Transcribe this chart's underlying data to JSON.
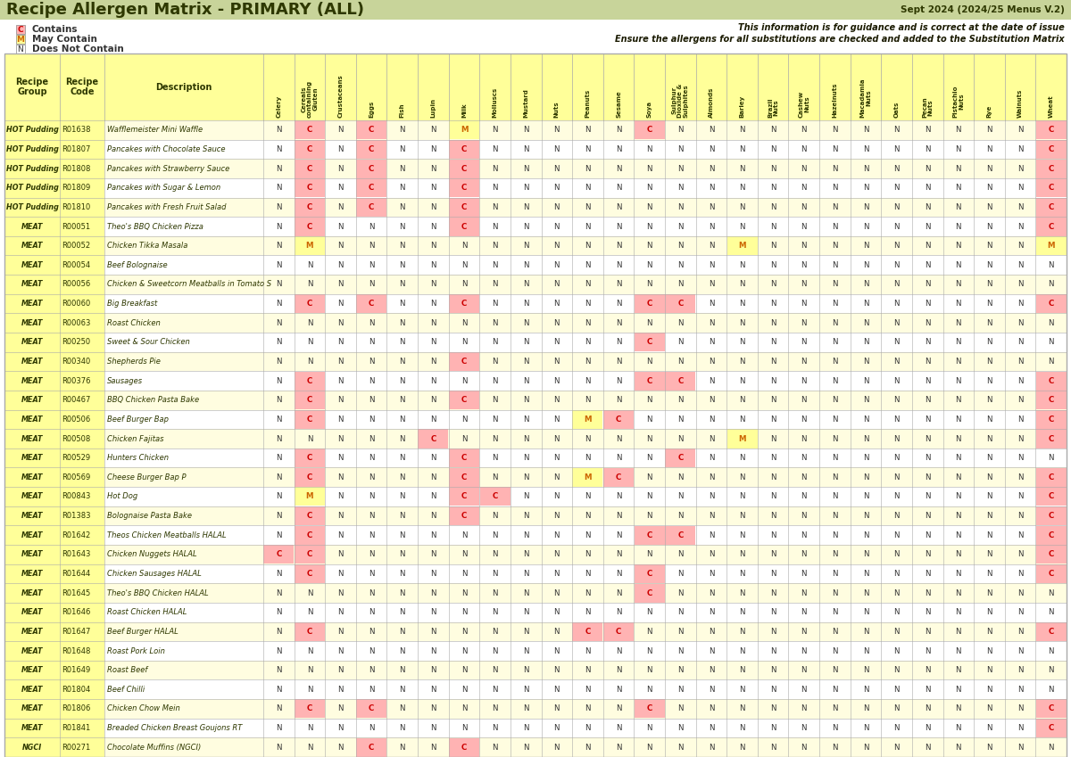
{
  "title": "Recipe Allergen Matrix - PRIMARY (ALL)",
  "version": "Sept 2024 (2024/25 Menus V.2)",
  "guidance": "This information is for guidance and is correct at the date of issue",
  "guidance2": "Ensure the allergens for all substitutions are checked and added to the Substitution Matrix",
  "header_green": "#C8D49A",
  "table_yellow": "#FFFF99",
  "cell_C": "#FFB3B3",
  "cell_M": "#FFFF99",
  "cell_N": "#FFFFFF",
  "row_alt": "#FFFDE0",
  "grid_color": "#AAAAAA",
  "allergen_labels": [
    "Celery",
    "Cereals\ncontaining\nGluten",
    "Crustaceans",
    "Eggs",
    "Fish",
    "Lupin",
    "Milk",
    "Molluscs",
    "Mustard",
    "Nuts",
    "Peanuts",
    "Sesame",
    "Soya",
    "Sulphur\nDioxide &\nSulphites",
    "Almonds",
    "Barley",
    "Brazil\nNuts",
    "Cashew\nNuts",
    "Hazelnuts",
    "Macadamia\nNuts",
    "Oats",
    "Pecan\nNuts",
    "Pistachio\nNuts",
    "Rye",
    "Walnuts",
    "Wheat"
  ],
  "rows": [
    {
      "group": "HOT Pudding",
      "code": "R01638",
      "desc": "Wafflemeister Mini Waffle",
      "vals": [
        "N",
        "C",
        "N",
        "C",
        "N",
        "N",
        "M",
        "N",
        "N",
        "N",
        "N",
        "N",
        "C",
        "N",
        "N",
        "N",
        "N",
        "N",
        "N",
        "N",
        "N",
        "N",
        "N",
        "N",
        "N",
        "C"
      ]
    },
    {
      "group": "HOT Pudding",
      "code": "R01807",
      "desc": "Pancakes with Chocolate Sauce",
      "vals": [
        "N",
        "C",
        "N",
        "C",
        "N",
        "N",
        "C",
        "N",
        "N",
        "N",
        "N",
        "N",
        "N",
        "N",
        "N",
        "N",
        "N",
        "N",
        "N",
        "N",
        "N",
        "N",
        "N",
        "N",
        "N",
        "C"
      ]
    },
    {
      "group": "HOT Pudding",
      "code": "R01808",
      "desc": "Pancakes with Strawberry Sauce",
      "vals": [
        "N",
        "C",
        "N",
        "C",
        "N",
        "N",
        "C",
        "N",
        "N",
        "N",
        "N",
        "N",
        "N",
        "N",
        "N",
        "N",
        "N",
        "N",
        "N",
        "N",
        "N",
        "N",
        "N",
        "N",
        "N",
        "C"
      ]
    },
    {
      "group": "HOT Pudding",
      "code": "R01809",
      "desc": "Pancakes with Sugar & Lemon",
      "vals": [
        "N",
        "C",
        "N",
        "C",
        "N",
        "N",
        "C",
        "N",
        "N",
        "N",
        "N",
        "N",
        "N",
        "N",
        "N",
        "N",
        "N",
        "N",
        "N",
        "N",
        "N",
        "N",
        "N",
        "N",
        "N",
        "C"
      ]
    },
    {
      "group": "HOT Pudding",
      "code": "R01810",
      "desc": "Pancakes with Fresh Fruit Salad",
      "vals": [
        "N",
        "C",
        "N",
        "C",
        "N",
        "N",
        "C",
        "N",
        "N",
        "N",
        "N",
        "N",
        "N",
        "N",
        "N",
        "N",
        "N",
        "N",
        "N",
        "N",
        "N",
        "N",
        "N",
        "N",
        "N",
        "C"
      ]
    },
    {
      "group": "MEAT",
      "code": "R00051",
      "desc": "Theo's BBQ Chicken Pizza",
      "vals": [
        "N",
        "C",
        "N",
        "N",
        "N",
        "N",
        "C",
        "N",
        "N",
        "N",
        "N",
        "N",
        "N",
        "N",
        "N",
        "N",
        "N",
        "N",
        "N",
        "N",
        "N",
        "N",
        "N",
        "N",
        "N",
        "C"
      ]
    },
    {
      "group": "MEAT",
      "code": "R00052",
      "desc": "Chicken Tikka Masala",
      "vals": [
        "N",
        "M",
        "N",
        "N",
        "N",
        "N",
        "N",
        "N",
        "N",
        "N",
        "N",
        "N",
        "N",
        "N",
        "N",
        "M",
        "N",
        "N",
        "N",
        "N",
        "N",
        "N",
        "N",
        "N",
        "N",
        "M"
      ]
    },
    {
      "group": "MEAT",
      "code": "R00054",
      "desc": "Beef Bolognaise",
      "vals": [
        "N",
        "N",
        "N",
        "N",
        "N",
        "N",
        "N",
        "N",
        "N",
        "N",
        "N",
        "N",
        "N",
        "N",
        "N",
        "N",
        "N",
        "N",
        "N",
        "N",
        "N",
        "N",
        "N",
        "N",
        "N",
        "N"
      ]
    },
    {
      "group": "MEAT",
      "code": "R00056",
      "desc": "Chicken & Sweetcorn Meatballs in Tomato S",
      "vals": [
        "N",
        "N",
        "N",
        "N",
        "N",
        "N",
        "N",
        "N",
        "N",
        "N",
        "N",
        "N",
        "N",
        "N",
        "N",
        "N",
        "N",
        "N",
        "N",
        "N",
        "N",
        "N",
        "N",
        "N",
        "N",
        "N"
      ]
    },
    {
      "group": "MEAT",
      "code": "R00060",
      "desc": "Big Breakfast",
      "vals": [
        "N",
        "C",
        "N",
        "C",
        "N",
        "N",
        "C",
        "N",
        "N",
        "N",
        "N",
        "N",
        "C",
        "C",
        "N",
        "N",
        "N",
        "N",
        "N",
        "N",
        "N",
        "N",
        "N",
        "N",
        "N",
        "C"
      ]
    },
    {
      "group": "MEAT",
      "code": "R00063",
      "desc": "Roast Chicken",
      "vals": [
        "N",
        "N",
        "N",
        "N",
        "N",
        "N",
        "N",
        "N",
        "N",
        "N",
        "N",
        "N",
        "N",
        "N",
        "N",
        "N",
        "N",
        "N",
        "N",
        "N",
        "N",
        "N",
        "N",
        "N",
        "N",
        "N"
      ]
    },
    {
      "group": "MEAT",
      "code": "R00250",
      "desc": "Sweet & Sour Chicken",
      "vals": [
        "N",
        "N",
        "N",
        "N",
        "N",
        "N",
        "N",
        "N",
        "N",
        "N",
        "N",
        "N",
        "C",
        "N",
        "N",
        "N",
        "N",
        "N",
        "N",
        "N",
        "N",
        "N",
        "N",
        "N",
        "N",
        "N"
      ]
    },
    {
      "group": "MEAT",
      "code": "R00340",
      "desc": "Shepherds Pie",
      "vals": [
        "N",
        "N",
        "N",
        "N",
        "N",
        "N",
        "C",
        "N",
        "N",
        "N",
        "N",
        "N",
        "N",
        "N",
        "N",
        "N",
        "N",
        "N",
        "N",
        "N",
        "N",
        "N",
        "N",
        "N",
        "N",
        "N"
      ]
    },
    {
      "group": "MEAT",
      "code": "R00376",
      "desc": "Sausages",
      "vals": [
        "N",
        "C",
        "N",
        "N",
        "N",
        "N",
        "N",
        "N",
        "N",
        "N",
        "N",
        "N",
        "C",
        "C",
        "N",
        "N",
        "N",
        "N",
        "N",
        "N",
        "N",
        "N",
        "N",
        "N",
        "N",
        "C"
      ]
    },
    {
      "group": "MEAT",
      "code": "R00467",
      "desc": "BBQ Chicken Pasta Bake",
      "vals": [
        "N",
        "C",
        "N",
        "N",
        "N",
        "N",
        "C",
        "N",
        "N",
        "N",
        "N",
        "N",
        "N",
        "N",
        "N",
        "N",
        "N",
        "N",
        "N",
        "N",
        "N",
        "N",
        "N",
        "N",
        "N",
        "C"
      ]
    },
    {
      "group": "MEAT",
      "code": "R00506",
      "desc": "Beef Burger Bap",
      "vals": [
        "N",
        "C",
        "N",
        "N",
        "N",
        "N",
        "N",
        "N",
        "N",
        "N",
        "M",
        "C",
        "N",
        "N",
        "N",
        "N",
        "N",
        "N",
        "N",
        "N",
        "N",
        "N",
        "N",
        "N",
        "N",
        "C"
      ]
    },
    {
      "group": "MEAT",
      "code": "R00508",
      "desc": "Chicken Fajitas",
      "vals": [
        "N",
        "N",
        "N",
        "N",
        "N",
        "C",
        "N",
        "N",
        "N",
        "N",
        "N",
        "N",
        "N",
        "N",
        "N",
        "M",
        "N",
        "N",
        "N",
        "N",
        "N",
        "N",
        "N",
        "N",
        "N",
        "C"
      ]
    },
    {
      "group": "MEAT",
      "code": "R00529",
      "desc": "Hunters Chicken",
      "vals": [
        "N",
        "C",
        "N",
        "N",
        "N",
        "N",
        "C",
        "N",
        "N",
        "N",
        "N",
        "N",
        "N",
        "C",
        "N",
        "N",
        "N",
        "N",
        "N",
        "N",
        "N",
        "N",
        "N",
        "N",
        "N",
        "N"
      ]
    },
    {
      "group": "MEAT",
      "code": "R00569",
      "desc": "Cheese Burger Bap P",
      "vals": [
        "N",
        "C",
        "N",
        "N",
        "N",
        "N",
        "C",
        "N",
        "N",
        "N",
        "M",
        "C",
        "N",
        "N",
        "N",
        "N",
        "N",
        "N",
        "N",
        "N",
        "N",
        "N",
        "N",
        "N",
        "N",
        "C"
      ]
    },
    {
      "group": "MEAT",
      "code": "R00843",
      "desc": "Hot Dog",
      "vals": [
        "N",
        "M",
        "N",
        "N",
        "N",
        "N",
        "C",
        "C",
        "N",
        "N",
        "N",
        "N",
        "N",
        "N",
        "N",
        "N",
        "N",
        "N",
        "N",
        "N",
        "N",
        "N",
        "N",
        "N",
        "N",
        "C"
      ]
    },
    {
      "group": "MEAT",
      "code": "R01383",
      "desc": "Bolognaise Pasta Bake",
      "vals": [
        "N",
        "C",
        "N",
        "N",
        "N",
        "N",
        "C",
        "N",
        "N",
        "N",
        "N",
        "N",
        "N",
        "N",
        "N",
        "N",
        "N",
        "N",
        "N",
        "N",
        "N",
        "N",
        "N",
        "N",
        "N",
        "C"
      ]
    },
    {
      "group": "MEAT",
      "code": "R01642",
      "desc": "Theos Chicken Meatballs HALAL",
      "vals": [
        "N",
        "C",
        "N",
        "N",
        "N",
        "N",
        "N",
        "N",
        "N",
        "N",
        "N",
        "N",
        "C",
        "C",
        "N",
        "N",
        "N",
        "N",
        "N",
        "N",
        "N",
        "N",
        "N",
        "N",
        "N",
        "C"
      ]
    },
    {
      "group": "MEAT",
      "code": "R01643",
      "desc": "Chicken Nuggets HALAL",
      "vals": [
        "C",
        "C",
        "N",
        "N",
        "N",
        "N",
        "N",
        "N",
        "N",
        "N",
        "N",
        "N",
        "N",
        "N",
        "N",
        "N",
        "N",
        "N",
        "N",
        "N",
        "N",
        "N",
        "N",
        "N",
        "N",
        "C"
      ]
    },
    {
      "group": "MEAT",
      "code": "R01644",
      "desc": "Chicken Sausages HALAL",
      "vals": [
        "N",
        "C",
        "N",
        "N",
        "N",
        "N",
        "N",
        "N",
        "N",
        "N",
        "N",
        "N",
        "C",
        "N",
        "N",
        "N",
        "N",
        "N",
        "N",
        "N",
        "N",
        "N",
        "N",
        "N",
        "N",
        "C"
      ]
    },
    {
      "group": "MEAT",
      "code": "R01645",
      "desc": "Theo's BBQ Chicken HALAL",
      "vals": [
        "N",
        "N",
        "N",
        "N",
        "N",
        "N",
        "N",
        "N",
        "N",
        "N",
        "N",
        "N",
        "C",
        "N",
        "N",
        "N",
        "N",
        "N",
        "N",
        "N",
        "N",
        "N",
        "N",
        "N",
        "N",
        "N"
      ]
    },
    {
      "group": "MEAT",
      "code": "R01646",
      "desc": "Roast Chicken HALAL",
      "vals": [
        "N",
        "N",
        "N",
        "N",
        "N",
        "N",
        "N",
        "N",
        "N",
        "N",
        "N",
        "N",
        "N",
        "N",
        "N",
        "N",
        "N",
        "N",
        "N",
        "N",
        "N",
        "N",
        "N",
        "N",
        "N",
        "N"
      ]
    },
    {
      "group": "MEAT",
      "code": "R01647",
      "desc": "Beef Burger HALAL",
      "vals": [
        "N",
        "C",
        "N",
        "N",
        "N",
        "N",
        "N",
        "N",
        "N",
        "N",
        "C",
        "C",
        "N",
        "N",
        "N",
        "N",
        "N",
        "N",
        "N",
        "N",
        "N",
        "N",
        "N",
        "N",
        "N",
        "C"
      ]
    },
    {
      "group": "MEAT",
      "code": "R01648",
      "desc": "Roast Pork Loin",
      "vals": [
        "N",
        "N",
        "N",
        "N",
        "N",
        "N",
        "N",
        "N",
        "N",
        "N",
        "N",
        "N",
        "N",
        "N",
        "N",
        "N",
        "N",
        "N",
        "N",
        "N",
        "N",
        "N",
        "N",
        "N",
        "N",
        "N"
      ]
    },
    {
      "group": "MEAT",
      "code": "R01649",
      "desc": "Roast Beef",
      "vals": [
        "N",
        "N",
        "N",
        "N",
        "N",
        "N",
        "N",
        "N",
        "N",
        "N",
        "N",
        "N",
        "N",
        "N",
        "N",
        "N",
        "N",
        "N",
        "N",
        "N",
        "N",
        "N",
        "N",
        "N",
        "N",
        "N"
      ]
    },
    {
      "group": "MEAT",
      "code": "R01804",
      "desc": "Beef Chilli",
      "vals": [
        "N",
        "N",
        "N",
        "N",
        "N",
        "N",
        "N",
        "N",
        "N",
        "N",
        "N",
        "N",
        "N",
        "N",
        "N",
        "N",
        "N",
        "N",
        "N",
        "N",
        "N",
        "N",
        "N",
        "N",
        "N",
        "N"
      ]
    },
    {
      "group": "MEAT",
      "code": "R01806",
      "desc": "Chicken Chow Mein",
      "vals": [
        "N",
        "C",
        "N",
        "C",
        "N",
        "N",
        "N",
        "N",
        "N",
        "N",
        "N",
        "N",
        "C",
        "N",
        "N",
        "N",
        "N",
        "N",
        "N",
        "N",
        "N",
        "N",
        "N",
        "N",
        "N",
        "C"
      ]
    },
    {
      "group": "MEAT",
      "code": "R01841",
      "desc": "Breaded Chicken Breast Goujons RT",
      "vals": [
        "N",
        "N",
        "N",
        "N",
        "N",
        "N",
        "N",
        "N",
        "N",
        "N",
        "N",
        "N",
        "N",
        "N",
        "N",
        "N",
        "N",
        "N",
        "N",
        "N",
        "N",
        "N",
        "N",
        "N",
        "N",
        "C"
      ]
    },
    {
      "group": "NGCI",
      "code": "R00271",
      "desc": "Chocolate Muffins (NGCI)",
      "vals": [
        "N",
        "N",
        "N",
        "C",
        "N",
        "N",
        "C",
        "N",
        "N",
        "N",
        "N",
        "N",
        "N",
        "N",
        "N",
        "N",
        "N",
        "N",
        "N",
        "N",
        "N",
        "N",
        "N",
        "N",
        "N",
        "N"
      ]
    }
  ]
}
